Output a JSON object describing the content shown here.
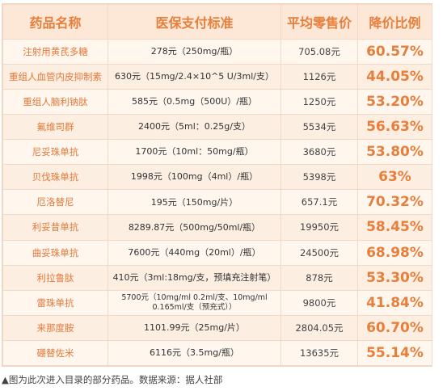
{
  "table": {
    "headers": [
      "药品名称",
      "医保支付标准",
      "平均零售价",
      "降价比例"
    ],
    "rows": [
      {
        "name": "注射用黄芪多糖",
        "standard": "278元（250mg/瓶）",
        "price": "705.08元",
        "ratio": "60.57%"
      },
      {
        "name": "重组人血管内皮抑制素",
        "standard": "630元（15mg/2.4×10^5 U/3ml/支）",
        "price": "1126元",
        "ratio": "44.05%"
      },
      {
        "name": "重组人脑利钠肽",
        "standard": "585元（0.5mg（500U）/瓶）",
        "price": "1250元",
        "ratio": "53.20%"
      },
      {
        "name": "氟维司群",
        "standard": "2400元（5ml：0.25g/支）",
        "price": "5534元",
        "ratio": "56.63%"
      },
      {
        "name": "尼妥珠单抗",
        "standard": "1700元（10ml：50mg/瓶）",
        "price": "3680元",
        "ratio": "53.80%"
      },
      {
        "name": "贝伐珠单抗",
        "standard": "1998元（100mg（4ml）/瓶）",
        "price": "5398元",
        "ratio": "63%"
      },
      {
        "name": "厄洛替尼",
        "standard": "195元（150mg/片）",
        "price": "657.1元",
        "ratio": "70.32%"
      },
      {
        "name": "利妥昔单抗",
        "standard": "8289.87元（500mg/50ml/瓶）",
        "price": "19950元",
        "ratio": "58.45%"
      },
      {
        "name": "曲妥珠单抗",
        "standard": "7600元（440mg（20ml）/瓶）",
        "price": "24500元",
        "ratio": "68.98%"
      },
      {
        "name": "利拉鲁肽",
        "standard": "410元（3ml:18mg/支，预填充注射笔）",
        "price": "878元",
        "ratio": "53.30%"
      },
      {
        "name": "雷珠单抗",
        "standard": "5700元（10mg/ml 0.2ml/支、10mg/ml 0.165ml/支（预充式））",
        "price": "9800元",
        "ratio": "41.84%"
      },
      {
        "name": "来那度胺",
        "standard": "1101.99元（25mg/片）",
        "price": "2804.05元",
        "ratio": "60.70%"
      },
      {
        "name": "硼替佐米",
        "standard": "6116元（3.5mg/瓶）",
        "price": "13635元",
        "ratio": "55.14%"
      }
    ]
  },
  "caption": "▲图为此次进入目录的部分药品。数据来源：据人社部",
  "colors": {
    "accent": "#e77f3c",
    "header_bg": "#fde7d6",
    "row_bg": "#fff6ee",
    "border": "#f2d8c5"
  }
}
